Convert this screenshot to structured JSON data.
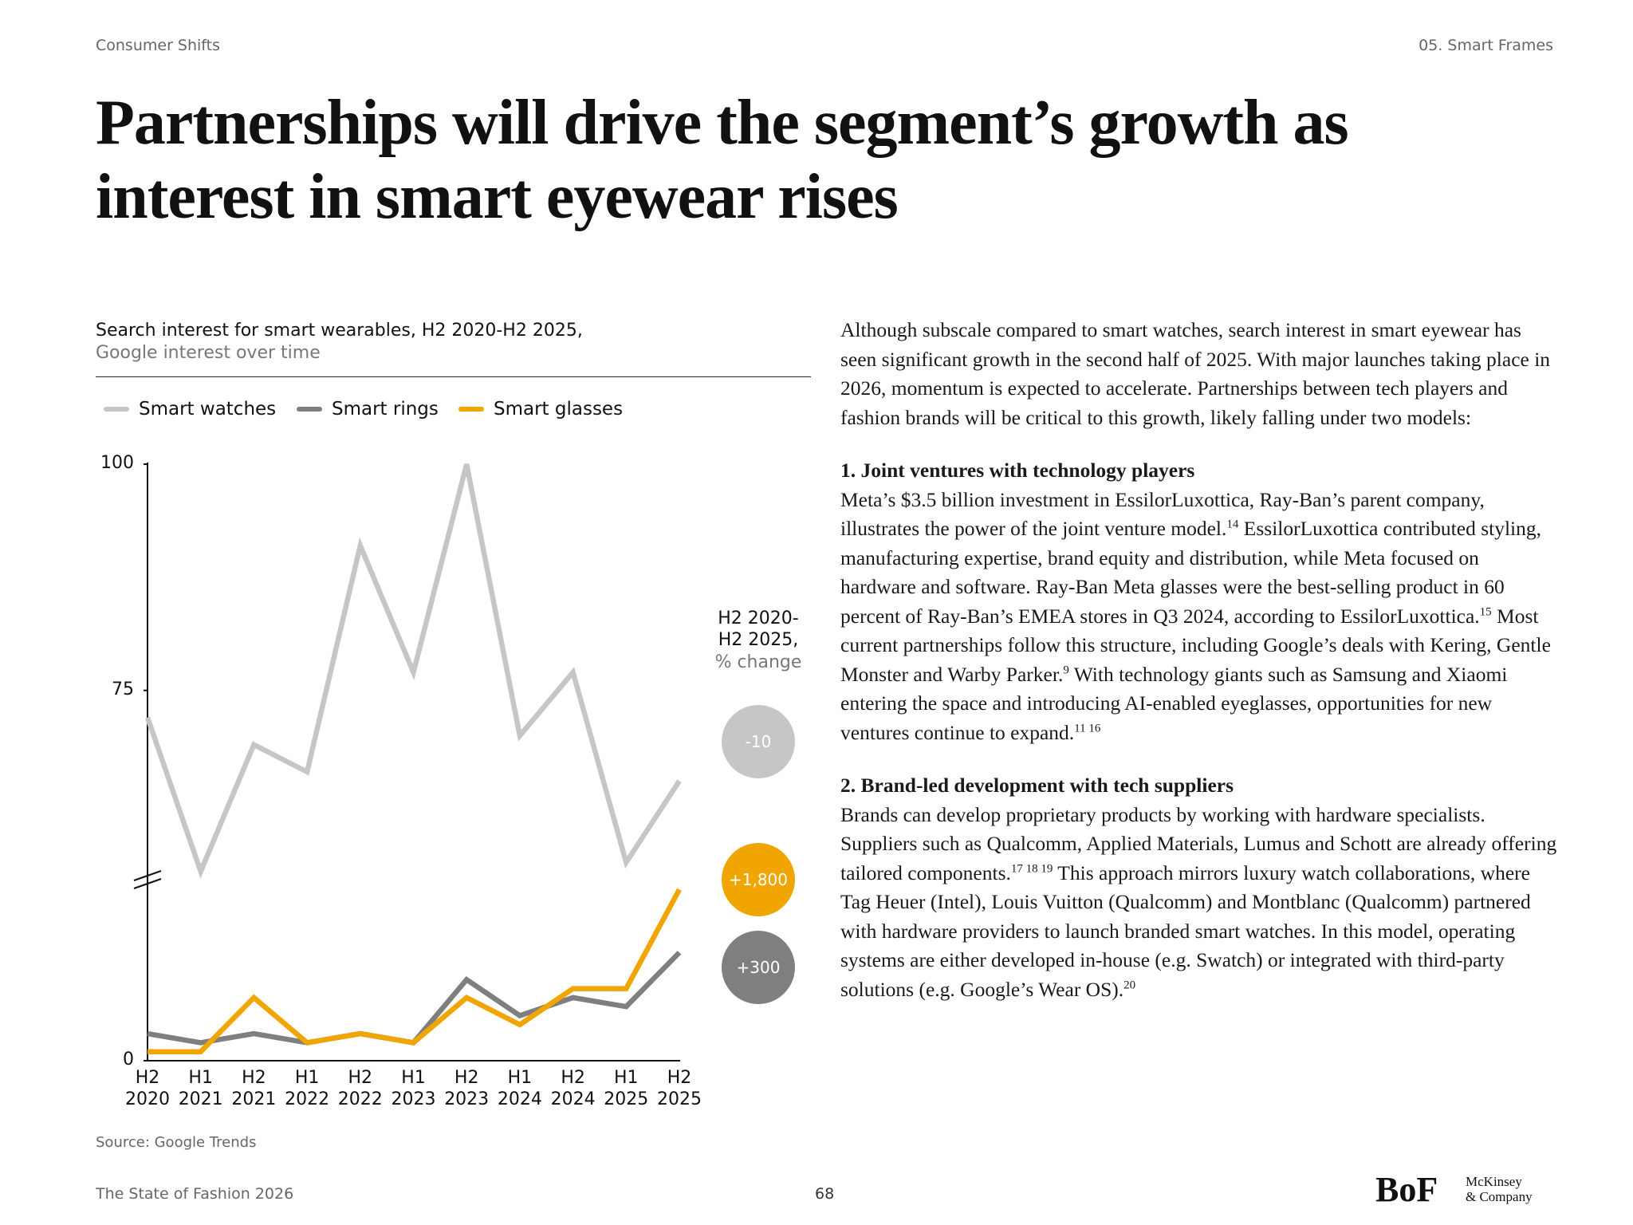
{
  "header": {
    "left": "Consumer Shifts",
    "right": "05. Smart Frames"
  },
  "title": "Partnerships will drive the segment’s growth as interest in smart eyewear rises",
  "chart_data": {
    "type": "line",
    "title": "Search interest for smart wearables, H2 2020-H2 2025,",
    "subtitle": "Google interest over time",
    "categories": [
      "H2\n2020",
      "H1\n2021",
      "H2\n2021",
      "H1\n2022",
      "H2\n2022",
      "H1\n2023",
      "H2\n2023",
      "H1\n2024",
      "H2\n2024",
      "H1\n2025",
      "H2\n2025"
    ],
    "series": [
      {
        "name": "Smart watches",
        "color": "#c6c6c6",
        "values": [
          72,
          55,
          69,
          66,
          91,
          77,
          100,
          70,
          77,
          56,
          65
        ]
      },
      {
        "name": "Smart rings",
        "color": "#7f7f7f",
        "values": [
          3,
          2,
          3,
          2,
          3,
          2,
          9,
          5,
          7,
          6,
          12
        ]
      },
      {
        "name": "Smart glasses",
        "color": "#f0a500",
        "values": [
          1,
          1,
          7,
          2,
          3,
          2,
          7,
          4,
          8,
          8,
          19
        ]
      }
    ],
    "ylim": [
      0,
      100
    ],
    "yticks": [
      0,
      75,
      100
    ],
    "y_break": [
      20,
      54
    ],
    "annotation": {
      "title": "H2 2020-\nH2 2025,",
      "subtitle": "% change",
      "values": [
        -10,
        1800,
        300
      ],
      "value_labels": [
        "-10",
        "+1,800",
        "+300"
      ],
      "colors": [
        "#c6c6c6",
        "#f0a500",
        "#7f7f7f"
      ]
    },
    "source": "Source: Google Trends"
  },
  "body": [
    {
      "paragraph": [
        "Although subscale compared to smart watches, search interest in smart eyewear has seen significant growth in the second half of 2025. With major launches taking place in 2026, momentum is expected to accelerate. Partnerships between tech players and fashion brands will be critical to this growth, likely falling under two models:"
      ]
    },
    {
      "heading": "1. Joint ventures with technology players",
      "paragraph": [
        "Meta’s $3.5 billion investment in EssilorLuxottica, Ray-Ban’s parent company, illustrates the power of the joint venture model.",
        "14",
        " EssilorLuxottica contributed styling, manufacturing expertise, brand equity and distribution, while Meta focused on hardware and software. Ray-Ban Meta glasses were the best-selling product in 60 percent of Ray-Ban’s EMEA stores in Q3 2024, according to EssilorLuxottica.",
        "15",
        " Most current partnerships follow this structure, including Google’s deals with Kering, Gentle Monster and Warby Parker.",
        "9",
        " With technology giants such as Samsung and Xiaomi entering the space and introducing AI-enabled eyeglasses, opportunities for new ventures continue to expand.",
        "11 16"
      ]
    },
    {
      "heading": "2. Brand-led development with tech suppliers",
      "paragraph": [
        "Brands can develop proprietary products by working with hardware specialists. Suppliers such as Qualcomm, Applied Materials, Lumus and Schott are already offering tailored components.",
        "17 18 19",
        " This approach mirrors luxury watch collaborations, where Tag Heuer (Intel), Louis Vuitton (Qualcomm) and Montblanc (Qualcomm) partnered with hardware providers to launch branded smart watches. In this model, operating systems are either developed in-house (e.g. Swatch) or integrated with third-party solutions (e.g. Google’s Wear OS).",
        "20"
      ]
    }
  ],
  "footer": {
    "left": "The State of Fashion 2026",
    "page": "68",
    "logo": "BoF",
    "partner": "McKinsey\n& Company"
  }
}
